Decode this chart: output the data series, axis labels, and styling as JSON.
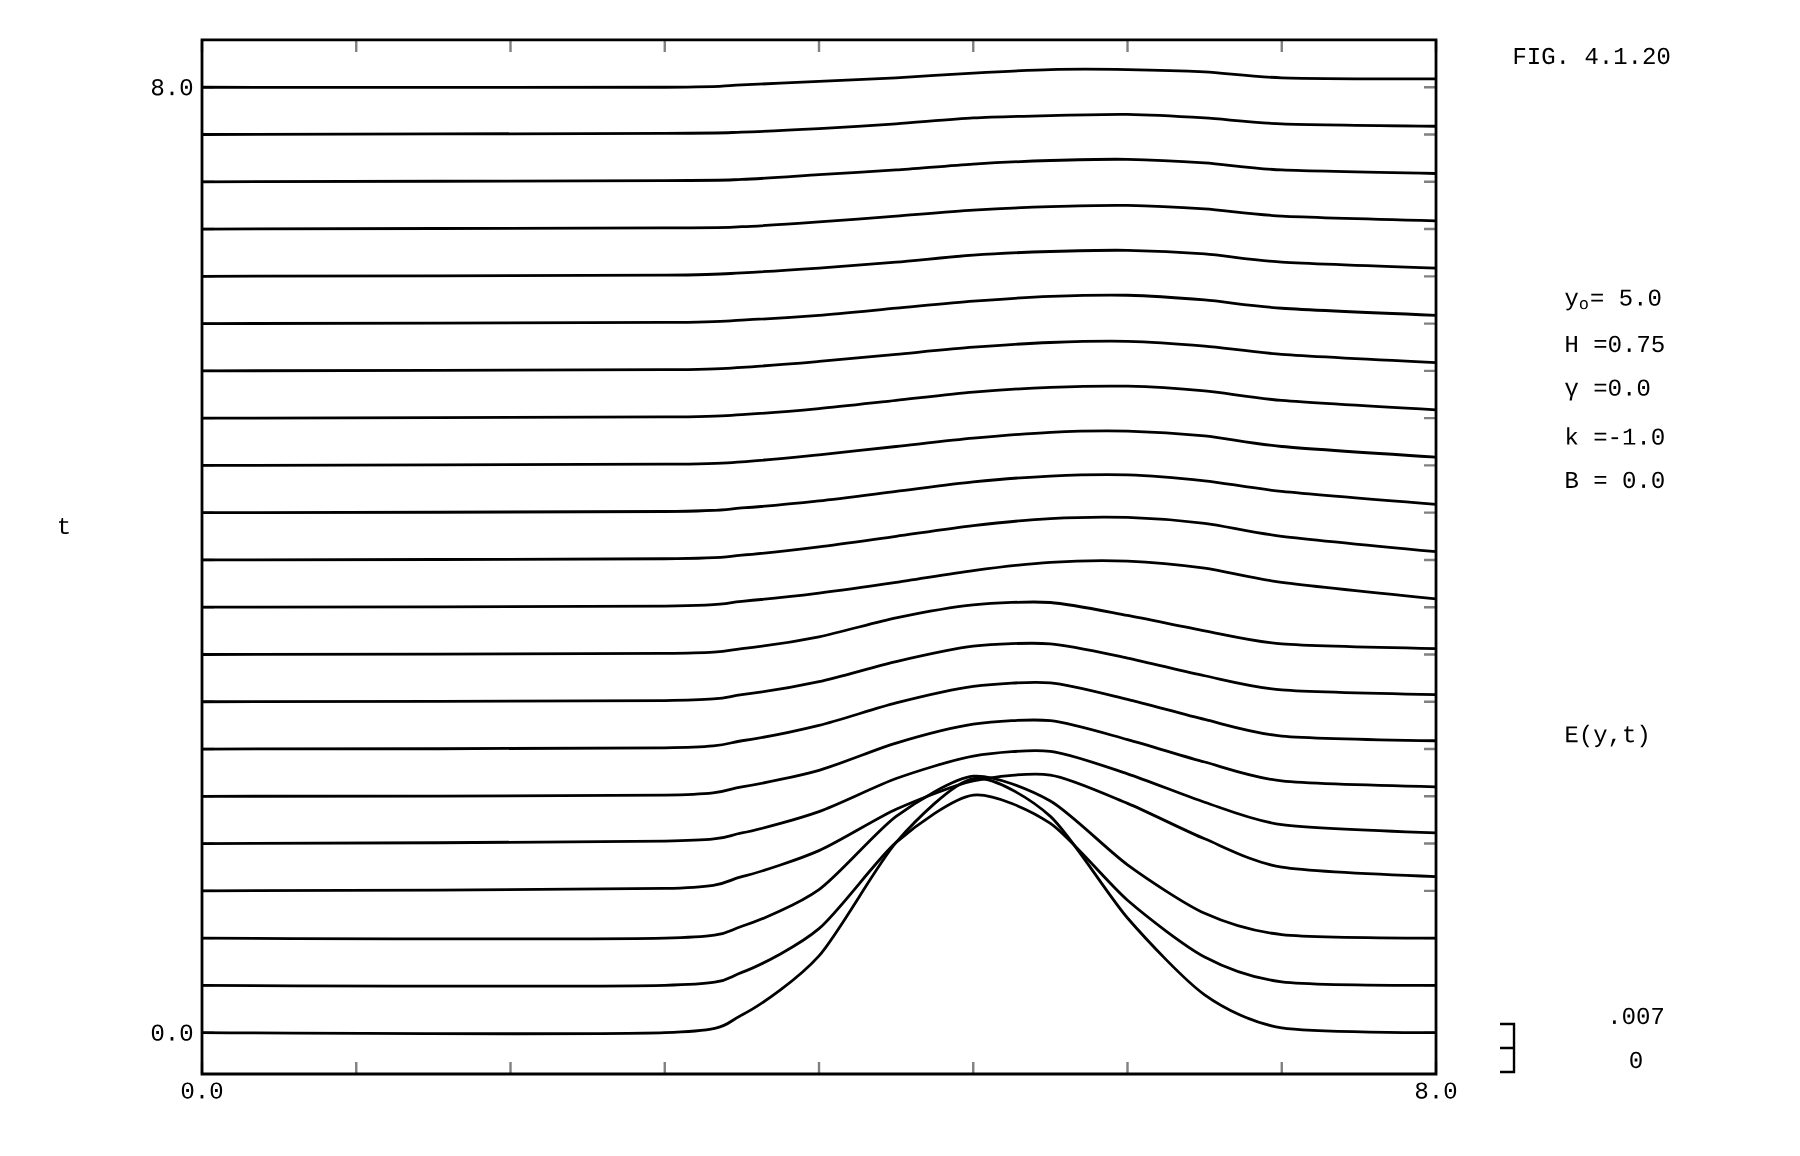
{
  "chart_data": {
    "type": "line",
    "title": "FIG. 4.1.20",
    "ylabel": "t",
    "annotations": [
      "y$_{o}$= 5.0",
      "H =0.75",
      "γ =0.0",
      "k =-1.0",
      "B = 0.0",
      "E(y,t)",
      ".007",
      "0"
    ],
    "x": [
      0,
      3,
      3.5,
      4,
      4.5,
      5,
      5.5,
      6,
      6.5,
      7,
      8
    ],
    "line_style": "solid",
    "series": [
      {
        "color": "#000000",
        "values": [
          0,
          0,
          0.15,
          0.65,
          1.61,
          2.15,
          1.83,
          0.97,
          0.32,
          0.04,
          0
        ]
      },
      {
        "color": "#000000",
        "values": [
          0.4,
          0.4,
          0.51,
          0.88,
          1.61,
          2.01,
          1.77,
          1.12,
          0.64,
          0.43,
          0.4
        ]
      },
      {
        "color": "#000000",
        "values": [
          0.8,
          0.8,
          0.9,
          1.21,
          1.83,
          2.17,
          1.96,
          1.42,
          1.01,
          0.83,
          0.8
        ]
      },
      {
        "color": "#000000",
        "values": [
          1.2,
          1.22,
          1.32,
          1.54,
          1.89,
          2.13,
          2.18,
          1.94,
          1.64,
          1.4,
          1.32
        ]
      },
      {
        "color": "#000000",
        "values": [
          1.6,
          1.62,
          1.69,
          1.87,
          2.15,
          2.34,
          2.38,
          2.19,
          1.95,
          1.76,
          1.69
        ]
      },
      {
        "color": "#000000",
        "values": [
          2.0,
          2.01,
          2.08,
          2.22,
          2.45,
          2.61,
          2.64,
          2.48,
          2.29,
          2.13,
          2.08
        ]
      },
      {
        "color": "#000000",
        "values": [
          2.4,
          2.41,
          2.47,
          2.6,
          2.79,
          2.93,
          2.96,
          2.82,
          2.65,
          2.51,
          2.47
        ]
      },
      {
        "color": "#000000",
        "values": [
          2.8,
          2.81,
          2.86,
          2.97,
          3.14,
          3.27,
          3.29,
          3.17,
          3.02,
          2.9,
          2.86
        ]
      },
      {
        "color": "#000000",
        "values": [
          3.2,
          3.21,
          3.25,
          3.35,
          3.51,
          3.62,
          3.64,
          3.53,
          3.4,
          3.29,
          3.25
        ]
      },
      {
        "color": "#000000",
        "values": [
          3.6,
          3.61,
          3.65,
          3.72,
          3.81,
          3.91,
          3.98,
          3.99,
          3.93,
          3.81,
          3.67
        ]
      },
      {
        "color": "#000000",
        "values": [
          4.0,
          4.01,
          4.04,
          4.11,
          4.2,
          4.29,
          4.35,
          4.36,
          4.31,
          4.2,
          4.07
        ]
      },
      {
        "color": "#000000",
        "values": [
          4.4,
          4.41,
          4.44,
          4.5,
          4.58,
          4.66,
          4.71,
          4.72,
          4.67,
          4.58,
          4.47
        ]
      },
      {
        "color": "#000000",
        "values": [
          4.8,
          4.81,
          4.83,
          4.89,
          4.96,
          5.03,
          5.08,
          5.09,
          5.05,
          4.96,
          4.87
        ]
      },
      {
        "color": "#000000",
        "values": [
          5.2,
          5.21,
          5.23,
          5.28,
          5.35,
          5.42,
          5.46,
          5.47,
          5.43,
          5.35,
          5.27
        ]
      },
      {
        "color": "#000000",
        "values": [
          5.6,
          5.61,
          5.63,
          5.68,
          5.74,
          5.8,
          5.84,
          5.85,
          5.81,
          5.74,
          5.67
        ]
      },
      {
        "color": "#000000",
        "values": [
          6.0,
          6.01,
          6.03,
          6.07,
          6.13,
          6.19,
          6.23,
          6.24,
          6.2,
          6.13,
          6.07
        ]
      },
      {
        "color": "#000000",
        "values": [
          6.4,
          6.41,
          6.43,
          6.47,
          6.52,
          6.58,
          6.61,
          6.62,
          6.59,
          6.52,
          6.47
        ]
      },
      {
        "color": "#000000",
        "values": [
          6.8,
          6.81,
          6.82,
          6.86,
          6.91,
          6.96,
          6.99,
          7.0,
          6.97,
          6.91,
          6.87
        ]
      },
      {
        "color": "#000000",
        "values": [
          7.2,
          7.21,
          7.22,
          7.26,
          7.3,
          7.35,
          7.38,
          7.39,
          7.36,
          7.3,
          7.27
        ]
      },
      {
        "color": "#000000",
        "values": [
          7.6,
          7.61,
          7.62,
          7.65,
          7.69,
          7.74,
          7.76,
          7.77,
          7.74,
          7.69,
          7.67
        ]
      },
      {
        "color": "#000000",
        "values": [
          8.0,
          8.0,
          8.02,
          8.05,
          8.08,
          8.12,
          8.15,
          8.15,
          8.13,
          8.08,
          8.07
        ]
      }
    ],
    "xlim": [
      0,
      8
    ],
    "ylim": [
      -0.35,
      8.4
    ],
    "xticks": [
      {
        "value": 0,
        "label": "0.0"
      },
      {
        "value": 1,
        "label": null
      },
      {
        "value": 2,
        "label": null
      },
      {
        "value": 3,
        "label": null
      },
      {
        "value": 4,
        "label": null
      },
      {
        "value": 5,
        "label": null
      },
      {
        "value": 6,
        "label": null
      },
      {
        "value": 7,
        "label": null
      },
      {
        "value": 8,
        "label": "8.0"
      }
    ],
    "yticks": [
      {
        "value": 0,
        "label": "0.0"
      },
      {
        "value": 0.4,
        "label": null
      },
      {
        "value": 0.8,
        "label": null
      },
      {
        "value": 1.2,
        "label": null
      },
      {
        "value": 1.6,
        "label": null
      },
      {
        "value": 2.0,
        "label": null
      },
      {
        "value": 2.4,
        "label": null
      },
      {
        "value": 2.8,
        "label": null
      },
      {
        "value": 3.2,
        "label": null
      },
      {
        "value": 3.6,
        "label": null
      },
      {
        "value": 4.0,
        "label": null
      },
      {
        "value": 4.4,
        "label": null
      },
      {
        "value": 4.8,
        "label": null
      },
      {
        "value": 5.2,
        "label": null
      },
      {
        "value": 5.6,
        "label": null
      },
      {
        "value": 6.0,
        "label": null
      },
      {
        "value": 6.4,
        "label": null
      },
      {
        "value": 6.8,
        "label": null
      },
      {
        "value": 7.2,
        "label": null
      },
      {
        "value": 7.6,
        "label": null
      },
      {
        "value": 8.0,
        "label": "8.0"
      }
    ]
  }
}
